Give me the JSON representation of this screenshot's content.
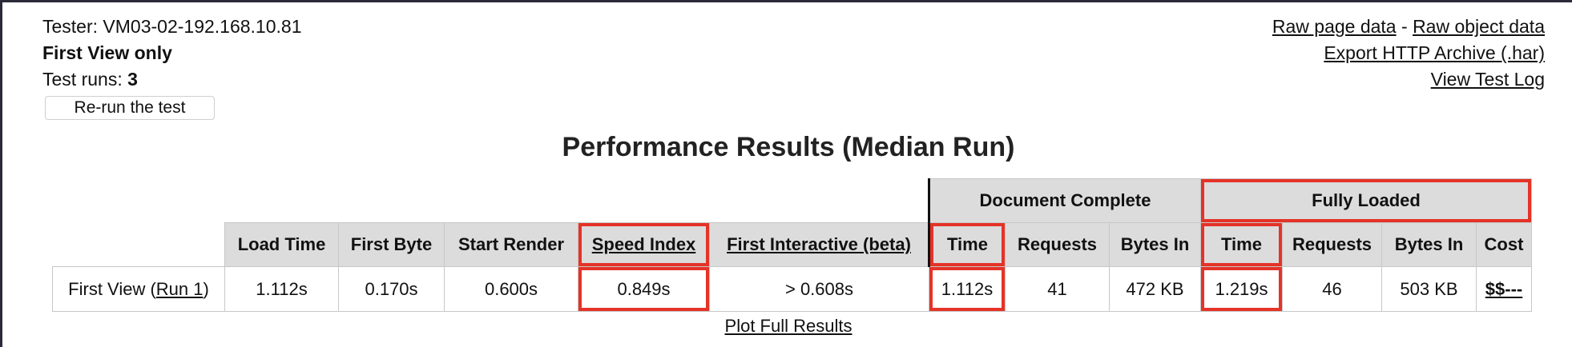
{
  "tester": {
    "label": "Tester: VM03-02-192.168.10.81",
    "view_mode": "First View only",
    "runs_label": "Test runs: ",
    "runs_value": "3",
    "rerun_button": "Re-run the test"
  },
  "links": {
    "raw_page_data": "Raw page data",
    "separator": " - ",
    "raw_object_data": "Raw object data",
    "export_har": "Export HTTP Archive (.har)",
    "view_test_log": "View Test Log"
  },
  "title": "Performance Results (Median Run)",
  "table": {
    "group_headers": {
      "document_complete": "Document Complete",
      "fully_loaded": "Fully Loaded"
    },
    "columns": {
      "load_time": "Load Time",
      "first_byte": "First Byte",
      "start_render": "Start Render",
      "speed_index": "Speed Index",
      "first_interactive": "First Interactive (beta)",
      "doc_time": "Time",
      "doc_requests": "Requests",
      "doc_bytes_in": "Bytes In",
      "fl_time": "Time",
      "fl_requests": "Requests",
      "fl_bytes_in": "Bytes In",
      "cost": "Cost"
    },
    "row": {
      "label_prefix": "First View (",
      "run_link": "Run 1",
      "label_suffix": ")",
      "load_time": "1.112s",
      "first_byte": "0.170s",
      "start_render": "0.600s",
      "speed_index": "0.849s",
      "first_interactive": "> 0.608s",
      "doc_time": "1.112s",
      "doc_requests": "41",
      "doc_bytes_in": "472 KB",
      "fl_time": "1.219s",
      "fl_requests": "46",
      "fl_bytes_in": "503 KB",
      "cost": "$$---"
    }
  },
  "plot_link": "Plot Full Results",
  "colors": {
    "highlight": "#e53327",
    "header_bg": "#dcdcdc"
  }
}
